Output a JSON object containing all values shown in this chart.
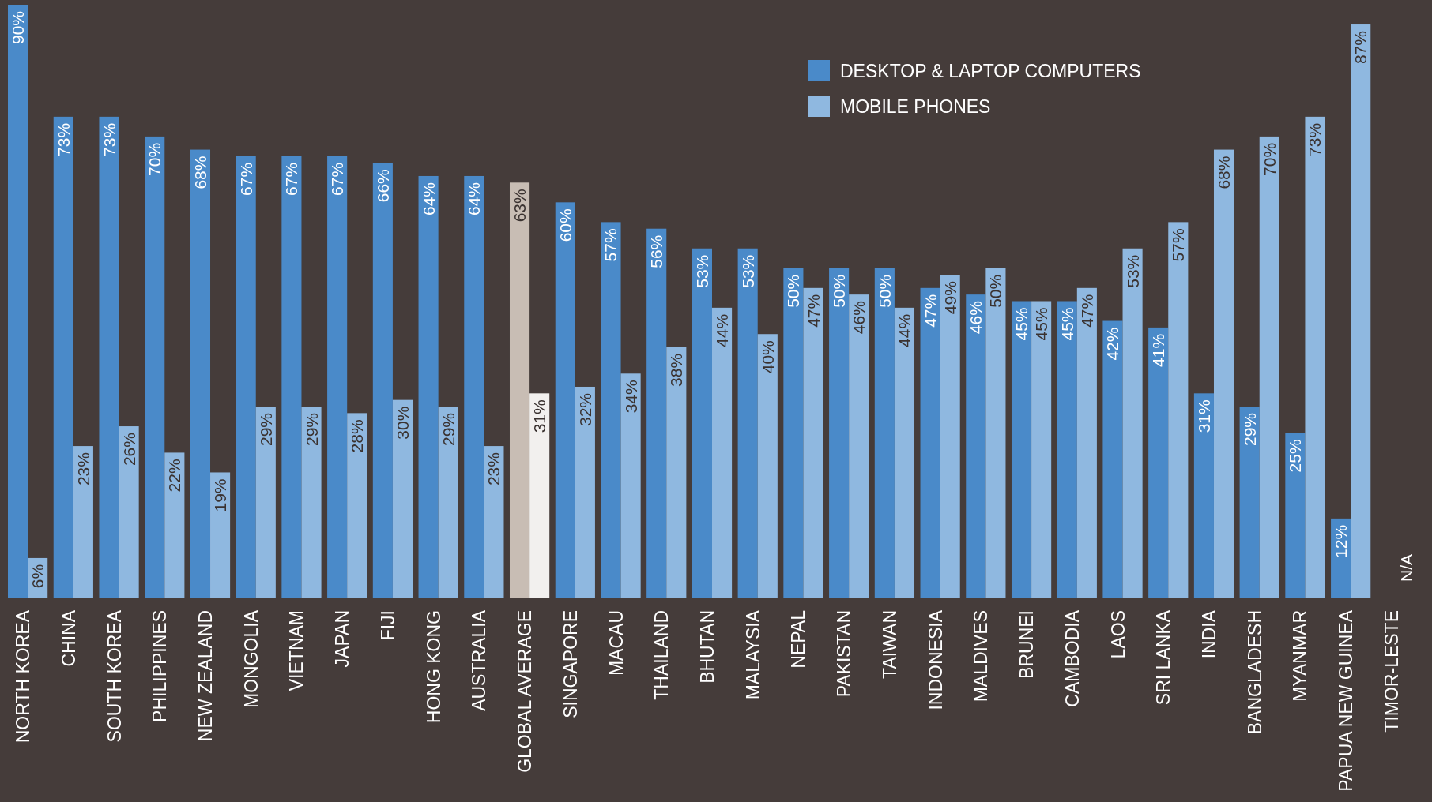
{
  "chart_data": {
    "type": "bar",
    "categories": [
      "NORTH KOREA",
      "CHINA",
      "SOUTH KOREA",
      "PHILIPPINES",
      "NEW ZEALAND",
      "MONGOLIA",
      "VIETNAM",
      "JAPAN",
      "FIJI",
      "HONG KONG",
      "AUSTRALIA",
      "GLOBAL AVERAGE",
      "SINGAPORE",
      "MACAU",
      "THAILAND",
      "BHUTAN",
      "MALAYSIA",
      "NEPAL",
      "PAKISTAN",
      "TAIWAN",
      "INDONESIA",
      "MALDIVES",
      "BRUNEI",
      "CAMBODIA",
      "LAOS",
      "SRI LANKA",
      "INDIA",
      "BANGLADESH",
      "MYANMAR",
      "PAPUA NEW GUINEA",
      "TIMOR-LESTE"
    ],
    "series": [
      {
        "name": "DESKTOP & LAPTOP COMPUTERS",
        "color": "#4a8ac9",
        "colors": [
          "#4a8ac9",
          "#4a8ac9",
          "#4a8ac9",
          "#4a8ac9",
          "#4a8ac9",
          "#4a8ac9",
          "#4a8ac9",
          "#4a8ac9",
          "#4a8ac9",
          "#4a8ac9",
          "#4a8ac9",
          "#c8bdb4",
          "#4a8ac9",
          "#4a8ac9",
          "#4a8ac9",
          "#4a8ac9",
          "#4a8ac9",
          "#4a8ac9",
          "#4a8ac9",
          "#4a8ac9",
          "#4a8ac9",
          "#4a8ac9",
          "#4a8ac9",
          "#4a8ac9",
          "#4a8ac9",
          "#4a8ac9",
          "#4a8ac9",
          "#4a8ac9",
          "#4a8ac9",
          "#4a8ac9",
          "#4a8ac9"
        ],
        "values": [
          90,
          73,
          73,
          70,
          68,
          67,
          67,
          67,
          66,
          64,
          64,
          63,
          60,
          57,
          56,
          53,
          53,
          50,
          50,
          50,
          47,
          46,
          45,
          45,
          42,
          41,
          31,
          29,
          25,
          12,
          null
        ],
        "value_labels": [
          "90%",
          "73%",
          "73%",
          "70%",
          "68%",
          "67%",
          "67%",
          "67%",
          "66%",
          "64%",
          "64%",
          "63%",
          "60%",
          "57%",
          "56%",
          "53%",
          "53%",
          "50%",
          "50%",
          "50%",
          "47%",
          "46%",
          "45%",
          "45%",
          "42%",
          "41%",
          "31%",
          "29%",
          "25%",
          "12%",
          null
        ]
      },
      {
        "name": "MOBILE PHONES",
        "color": "#8fb8e0",
        "colors": [
          "#8fb8e0",
          "#8fb8e0",
          "#8fb8e0",
          "#8fb8e0",
          "#8fb8e0",
          "#8fb8e0",
          "#8fb8e0",
          "#8fb8e0",
          "#8fb8e0",
          "#8fb8e0",
          "#8fb8e0",
          "#f2f0ee",
          "#8fb8e0",
          "#8fb8e0",
          "#8fb8e0",
          "#8fb8e0",
          "#8fb8e0",
          "#8fb8e0",
          "#8fb8e0",
          "#8fb8e0",
          "#8fb8e0",
          "#8fb8e0",
          "#8fb8e0",
          "#8fb8e0",
          "#8fb8e0",
          "#8fb8e0",
          "#8fb8e0",
          "#8fb8e0",
          "#8fb8e0",
          "#8fb8e0",
          "#8fb8e0"
        ],
        "values": [
          6,
          23,
          26,
          22,
          19,
          29,
          29,
          28,
          30,
          29,
          23,
          31,
          32,
          34,
          38,
          44,
          40,
          47,
          46,
          44,
          49,
          50,
          45,
          47,
          53,
          57,
          68,
          70,
          73,
          87,
          null
        ],
        "value_labels": [
          "6%",
          "23%",
          "26%",
          "22%",
          "19%",
          "29%",
          "29%",
          "28%",
          "30%",
          "29%",
          "23%",
          "31%",
          "32%",
          "34%",
          "38%",
          "44%",
          "40%",
          "47%",
          "46%",
          "44%",
          "49%",
          "50%",
          "45%",
          "47%",
          "53%",
          "57%",
          "68%",
          "70%",
          "73%",
          "87%",
          "N/A"
        ]
      }
    ],
    "legend": "top right",
    "tick_labels": "x"
  }
}
